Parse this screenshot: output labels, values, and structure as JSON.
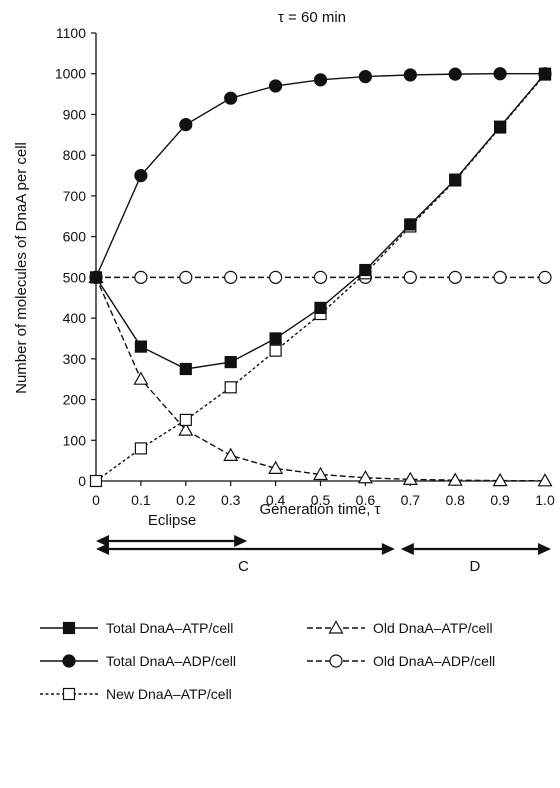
{
  "chart_data": {
    "type": "line",
    "title": "τ = 60 min",
    "xlabel": "Generation time, τ",
    "ylabel": "Number of molecules of DnaA per cell",
    "xlim": [
      0,
      1.0
    ],
    "ylim": [
      0,
      1100
    ],
    "x_ticks": [
      "0",
      "0.1",
      "0.2",
      "0.3",
      "0.4",
      "0.5",
      "0.6",
      "0.7",
      "0.8",
      "0.9",
      "1.0"
    ],
    "y_ticks": [
      "0",
      "100",
      "200",
      "300",
      "400",
      "500",
      "600",
      "700",
      "800",
      "900",
      "1000",
      "1100"
    ],
    "x": [
      0,
      0.1,
      0.2,
      0.3,
      0.4,
      0.5,
      0.6,
      0.7,
      0.8,
      0.9,
      1.0
    ],
    "series": [
      {
        "name": "Total DnaA–ATP/cell",
        "marker": "square-filled",
        "line": "solid",
        "values": [
          500,
          330,
          275,
          292,
          350,
          425,
          518,
          630,
          740,
          870,
          1000
        ]
      },
      {
        "name": "Total DnaA–ADP/cell",
        "marker": "circle-filled",
        "line": "solid",
        "values": [
          500,
          750,
          875,
          940,
          970,
          985,
          993,
          997,
          999,
          1000,
          1000
        ]
      },
      {
        "name": "New DnaA–ATP/cell",
        "marker": "square-open",
        "line": "dotted",
        "values": [
          0,
          80,
          150,
          230,
          320,
          410,
          510,
          625,
          738,
          868,
          998
        ]
      },
      {
        "name": "Old DnaA–ATP/cell",
        "marker": "triangle-open",
        "line": "dashed",
        "values": [
          500,
          250,
          125,
          63,
          31,
          16,
          8,
          4,
          2,
          1,
          0.5
        ]
      },
      {
        "name": "Old DnaA–ADP/cell",
        "marker": "circle-open",
        "line": "dashed",
        "values": [
          500,
          500,
          500,
          500,
          500,
          500,
          500,
          500,
          500,
          500,
          500
        ]
      }
    ],
    "periods": [
      {
        "label": "Eclipse",
        "start": 0,
        "end": 0.33
      },
      {
        "label": "C",
        "start": 0,
        "end": 0.67
      },
      {
        "label": "D",
        "start": 0.67,
        "end": 1.0
      }
    ],
    "grid": false,
    "legend_position": "bottom"
  }
}
